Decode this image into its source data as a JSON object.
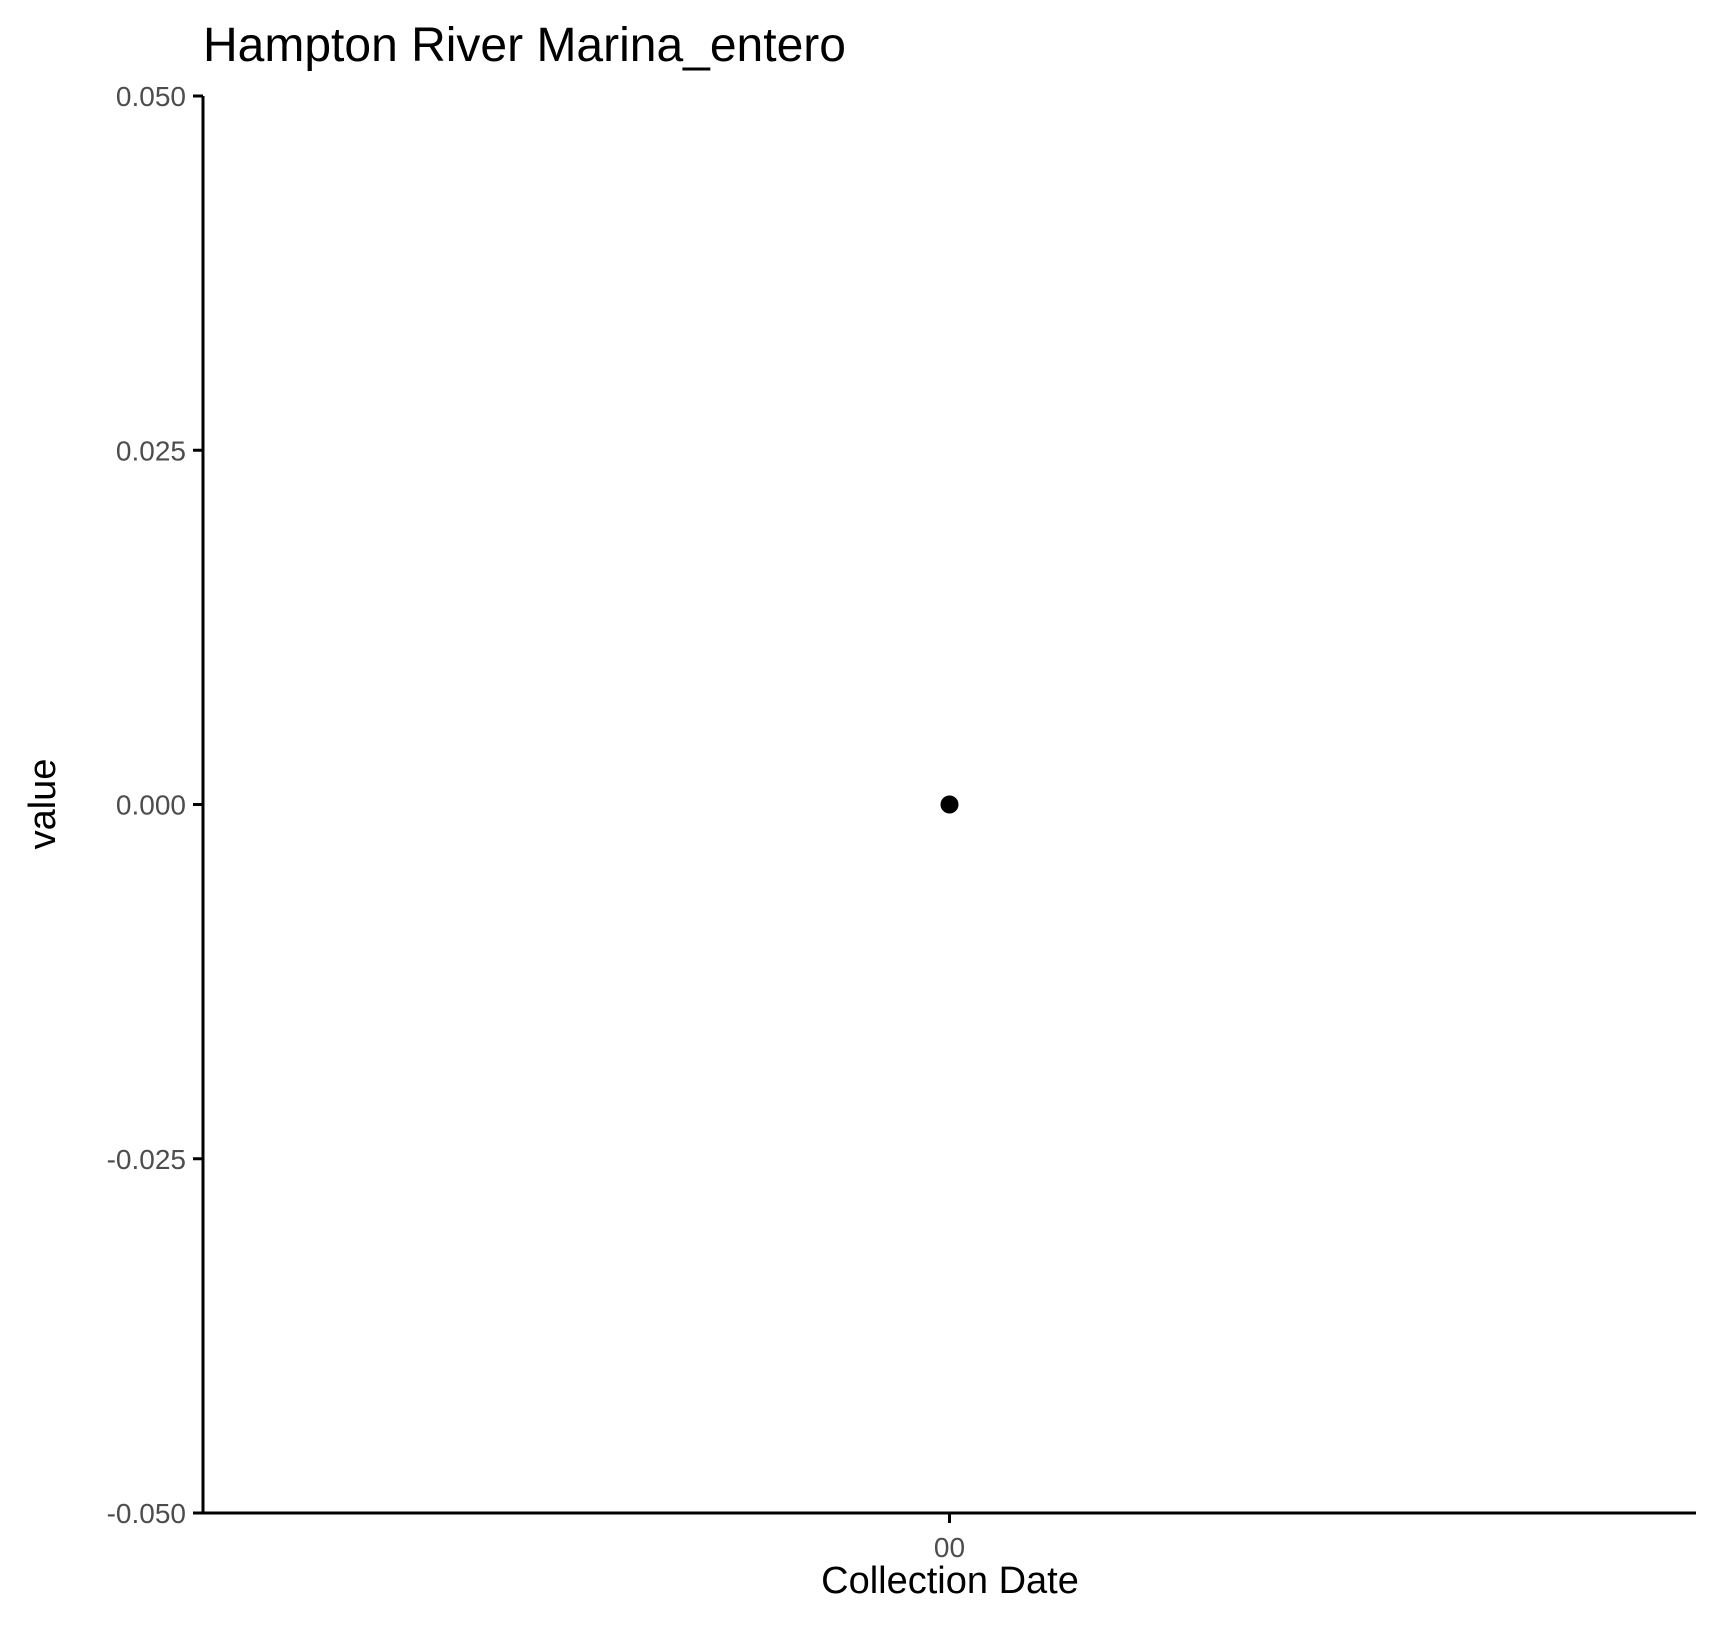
{
  "chart_data": {
    "type": "scatter",
    "title": "Hampton River Marina_entero",
    "xlabel": "Collection Date",
    "ylabel": "value",
    "x_tick_labels": [
      "00"
    ],
    "y_tick_labels": [
      "0.050",
      "0.025",
      "0.000",
      "-0.025",
      "-0.050"
    ],
    "y_ticks": [
      0.05,
      0.025,
      0,
      -0.025,
      -0.05
    ],
    "ylim": [
      -0.05,
      0.05
    ],
    "grid": false,
    "series": [
      {
        "points": [
          {
            "x": "00",
            "y": 0
          }
        ],
        "color": "#000000"
      }
    ]
  }
}
